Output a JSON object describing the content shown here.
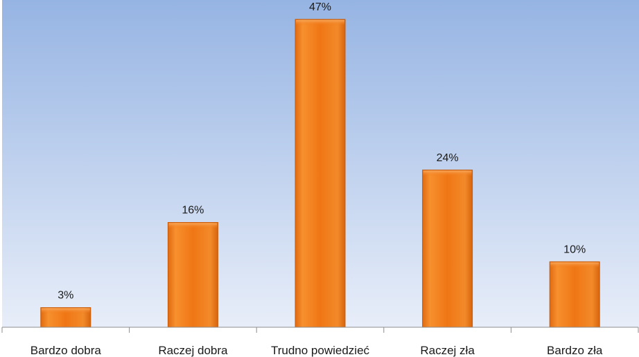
{
  "chart_data": {
    "type": "bar",
    "title": "",
    "xlabel": "",
    "ylabel": "",
    "categories": [
      "Bardzo dobra",
      "Raczej dobra",
      "Trudno powiedzieć",
      "Raczej zła",
      "Bardzo zła"
    ],
    "values": [
      3,
      16,
      47,
      24,
      10
    ],
    "data_labels": [
      "3%",
      "16%",
      "47%",
      "24%",
      "10%"
    ],
    "unit": "%",
    "ylim": [
      0,
      50
    ],
    "grid": false,
    "legend": "none",
    "colors": {
      "bar": "#f07614",
      "bar_edge": "#c85a0a",
      "background_top": "#96b4e3",
      "background_bottom": "#e8eef9",
      "axis": "#8c8c8c"
    }
  }
}
